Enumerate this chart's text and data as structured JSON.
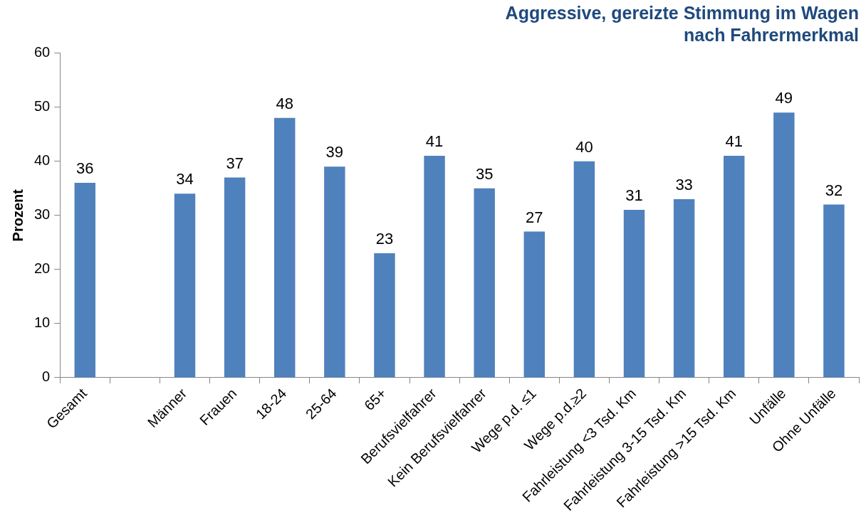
{
  "chart_data": {
    "type": "bar",
    "title": [
      "Aggressive, gereizte Stimmung im Wagen",
      "nach Fahrermerkmal"
    ],
    "ylabel": "Prozent",
    "categories": [
      "Gesamt",
      null,
      "Männer",
      "Frauen",
      "18-24",
      "25-64",
      "65+",
      "Berufsvielfahrer",
      "Kein Berufsvielfahrer",
      "Wege p.d. ≤1",
      "Wege p.d.≥2",
      "Fahrleistung <3 Tsd. Km",
      "Fahrleistung 3-15 Tsd. Km",
      "Fahrleistung >15 Tsd. Km",
      "Unfälle",
      "Ohne Unfälle"
    ],
    "values": [
      36,
      null,
      34,
      37,
      48,
      39,
      23,
      41,
      35,
      27,
      40,
      31,
      33,
      41,
      49,
      32
    ],
    "color": "#4f81bd",
    "ylim": [
      0,
      60
    ],
    "yticks": [
      0,
      10,
      20,
      30,
      40,
      50,
      60
    ],
    "data_labels": true,
    "legend": false
  }
}
